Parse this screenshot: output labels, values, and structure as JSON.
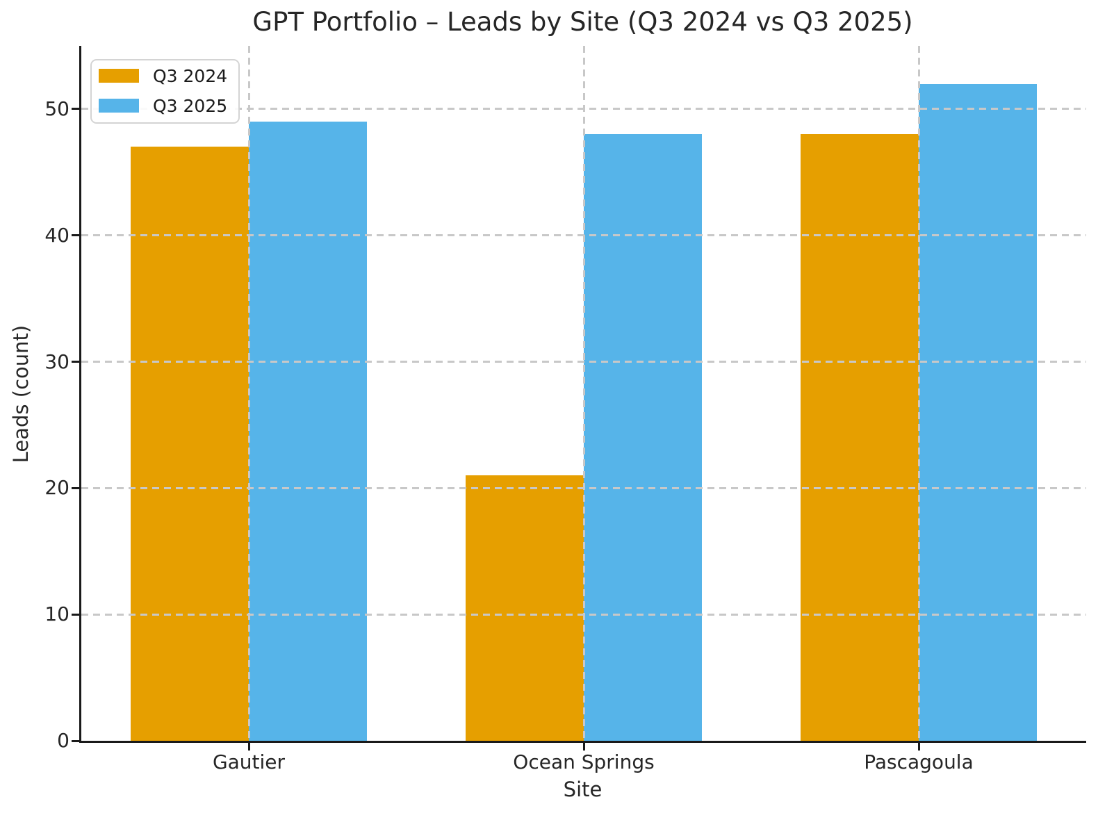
{
  "chart_data": {
    "type": "bar",
    "title": "GPT Portfolio – Leads by Site (Q3 2024 vs Q3 2025)",
    "xlabel": "Site",
    "ylabel": "Leads (count)",
    "categories": [
      "Gautier",
      "Ocean Springs",
      "Pascagoula"
    ],
    "series": [
      {
        "name": "Q3 2024",
        "color": "#E69F00",
        "values": [
          47,
          21,
          48
        ]
      },
      {
        "name": "Q3 2025",
        "color": "#56B4E9",
        "values": [
          49,
          48,
          52
        ]
      }
    ],
    "ylim": [
      0,
      55
    ],
    "yticks": [
      0,
      10,
      20,
      30,
      40,
      50
    ],
    "grid": true,
    "grid_style": "dashed",
    "grid_color": "#c8c8c8",
    "legend_position": "upper-left",
    "axis_color": "#1a1a1a",
    "text_color": "#262626",
    "background": "#ffffff"
  }
}
